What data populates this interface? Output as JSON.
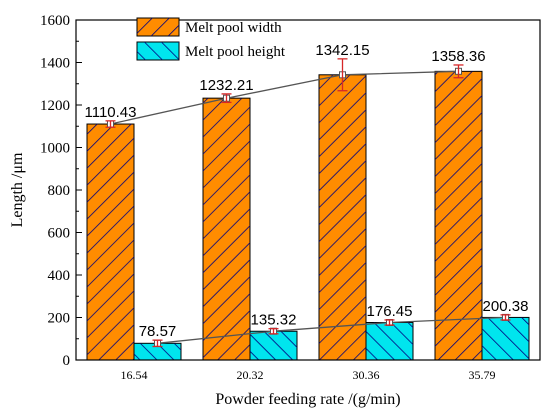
{
  "chart_data": {
    "type": "bar",
    "title": "",
    "xlabel": "Powder feeding rate /(g/min)",
    "ylabel": "Length /μm",
    "ylim": [
      0,
      1600
    ],
    "yticks": [
      0,
      200,
      400,
      600,
      800,
      1000,
      1200,
      1400,
      1600
    ],
    "categories": [
      "16.54",
      "20.32",
      "30.36",
      "35.79"
    ],
    "legend_position": "top-left",
    "grid": false,
    "series": [
      {
        "name": "Melt pool width",
        "values": [
          1110.43,
          1232.21,
          1342.15,
          1358.36
        ],
        "labels": [
          "1110.43",
          "1232.21",
          "1342.15",
          "1358.36"
        ],
        "errors": [
          15,
          20,
          75,
          30
        ],
        "fill": "#ff8c00",
        "hatch": "forward-diagonal",
        "hatch_color": "#000080"
      },
      {
        "name": "Melt pool height",
        "values": [
          78.57,
          135.32,
          176.45,
          200.38
        ],
        "labels": [
          "78.57",
          "135.32",
          "176.45",
          "200.38"
        ],
        "errors": [
          15,
          12,
          12,
          12
        ],
        "fill": "#00e5ee",
        "hatch": "back-diagonal",
        "hatch_color": "#000080"
      }
    ],
    "trend_lines": "connects bar tops of each series",
    "error_bar_color": "#d62728"
  }
}
